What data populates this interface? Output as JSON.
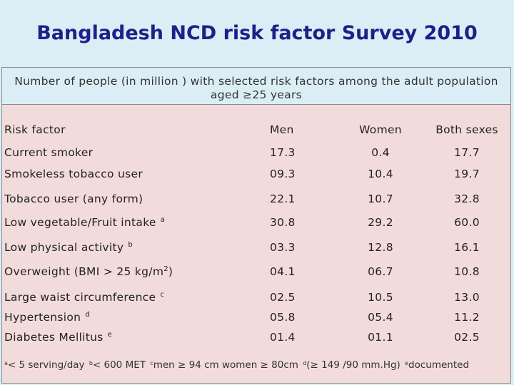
{
  "title": "Bangladesh NCD risk factor Survey 2010",
  "subtitle": "Number of people (in million ) with selected risk factors among the adult population aged ≥25 years",
  "table": {
    "headers": [
      "Risk factor",
      "Men",
      "Women",
      "Both sexes"
    ],
    "rows": [
      {
        "factor": "Current smoker",
        "note": "",
        "men": "17.3",
        "women": "0.4",
        "both": "17.7"
      },
      {
        "factor": "Smokeless tobacco user",
        "note": "",
        "men": "09.3",
        "women": "10.4",
        "both": "19.7"
      },
      {
        "factor": "Tobacco user (any form)",
        "note": "",
        "men": "22.1",
        "women": "10.7",
        "both": "32.8"
      },
      {
        "factor": "Low vegetable/Fruit intake",
        "note": "a",
        "men": "30.8",
        "women": "29.2",
        "both": "60.0"
      },
      {
        "factor": "Low physical activity",
        "note": "b",
        "men": "03.3",
        "women": "12.8",
        "both": "16.1"
      },
      {
        "factor": "Overweight (BMI > 25 kg/m",
        "note": "2",
        "factor_suffix": ")",
        "men": "04.1",
        "women": "06.7",
        "both": "10.8"
      },
      {
        "factor": "Large waist circumference",
        "note": "c",
        "men": "02.5",
        "women": "10.5",
        "both": "13.0"
      },
      {
        "factor": "Hypertension",
        "note": "d",
        "men": "05.8",
        "women": "05.4",
        "both": "11.2"
      },
      {
        "factor": "Diabetes Mellitus",
        "note": "e",
        "men": "01.4",
        "women": "01.1",
        "both": "02.5"
      }
    ]
  },
  "footnotes": [
    {
      "mark": "a",
      "text": "< 5 serving/day"
    },
    {
      "mark": "b",
      "text": "< 600 MET"
    },
    {
      "mark": "c",
      "text": "men ≥ 94 cm women ≥ 80cm"
    },
    {
      "mark": "d",
      "text": "(≥ 149 /90 mm.Hg)"
    },
    {
      "mark": "e",
      "text": "documented"
    }
  ]
}
